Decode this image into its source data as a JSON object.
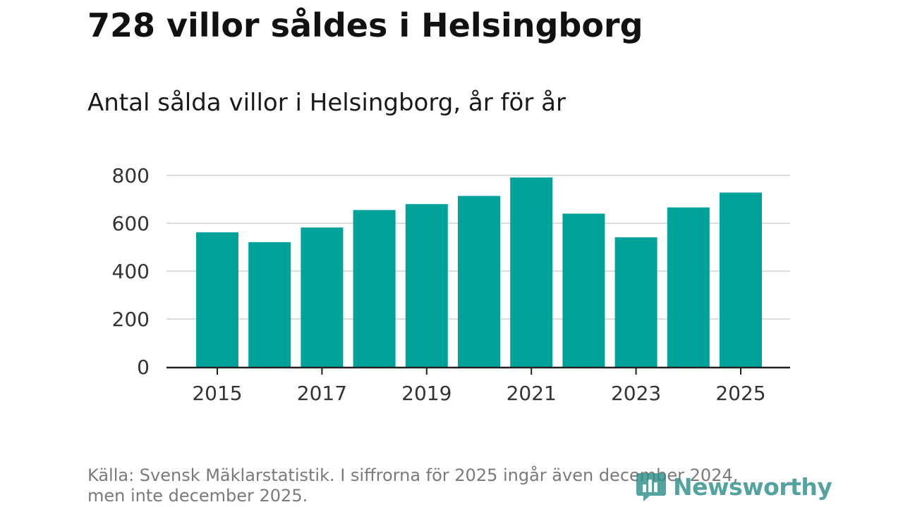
{
  "header": {
    "title": "728 villor såldes i Helsingborg",
    "subtitle": "Antal sålda villor i Helsingborg, år för år"
  },
  "chart_data": {
    "type": "bar",
    "categories": [
      "2015",
      "2016",
      "2017",
      "2018",
      "2019",
      "2020",
      "2021",
      "2022",
      "2023",
      "2024",
      "2025"
    ],
    "x_tick_labels": [
      "2015",
      "2017",
      "2019",
      "2021",
      "2023",
      "2025"
    ],
    "values": [
      562,
      521,
      582,
      655,
      680,
      714,
      791,
      640,
      541,
      666,
      728
    ],
    "y_ticks": [
      "0",
      "200",
      "400",
      "600",
      "800"
    ],
    "ylim": [
      0,
      800
    ],
    "title": "Antal sålda villor i Helsingborg, år för år",
    "xlabel": "",
    "ylabel": "",
    "grid": true,
    "bar_color": "#00a29a"
  },
  "footer": {
    "source": "Källa: Svensk Mäklarstatistik. I siffrorna för 2025 ingår även december 2024, men inte december 2025.",
    "logo_text": "Newsworthy",
    "logo_color": "#2f8f8a"
  }
}
